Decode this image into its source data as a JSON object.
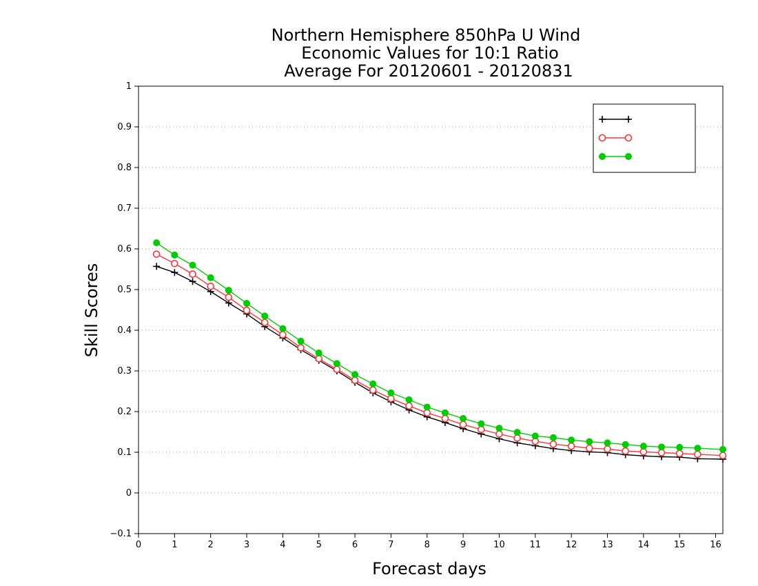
{
  "chart_data": {
    "type": "line",
    "title": [
      "Northern Hemisphere 850hPa U Wind",
      "Economic Values for 10:1 Ratio",
      "Average For 20120601 - 20120831"
    ],
    "xlabel": "Forecast days",
    "ylabel": "Skill Scores",
    "xlim": [
      0,
      16.2
    ],
    "ylim": [
      -0.1,
      1
    ],
    "xticks": [
      0,
      1,
      2,
      3,
      4,
      5,
      6,
      7,
      8,
      9,
      10,
      11,
      12,
      13,
      14,
      15,
      16
    ],
    "yticks": [
      -0.1,
      0,
      0.1,
      0.2,
      0.3,
      0.4,
      0.5,
      0.6,
      0.7,
      0.8,
      0.9,
      1
    ],
    "ytick_labels": [
      "−0.1",
      "0",
      "0.1",
      "0.2",
      "0.3",
      "0.4",
      "0.5",
      "0.6",
      "0.7",
      "0.8",
      "0.9",
      "1"
    ],
    "grid": "horizontal dotted",
    "legend_position": "top-right",
    "x": [
      0.5,
      1,
      1.5,
      2,
      2.5,
      3,
      3.5,
      4,
      4.5,
      5,
      5.5,
      6,
      6.5,
      7,
      7.5,
      8,
      8.5,
      9,
      9.5,
      10,
      10.5,
      11,
      11.5,
      12,
      12.5,
      13,
      13.5,
      14,
      14.5,
      15,
      15.5,
      16.2
    ],
    "series": [
      {
        "name": "",
        "color": "#000000",
        "marker": "plus",
        "values": [
          0.557,
          0.542,
          0.52,
          0.495,
          0.467,
          0.44,
          0.409,
          0.381,
          0.352,
          0.326,
          0.3,
          0.272,
          0.246,
          0.224,
          0.204,
          0.187,
          0.173,
          0.158,
          0.145,
          0.133,
          0.123,
          0.116,
          0.109,
          0.104,
          0.101,
          0.099,
          0.094,
          0.091,
          0.089,
          0.088,
          0.084,
          0.083
        ]
      },
      {
        "name": "",
        "color": "#ff3333",
        "marker": "open-circle",
        "values": [
          0.587,
          0.564,
          0.538,
          0.508,
          0.481,
          0.449,
          0.419,
          0.389,
          0.357,
          0.33,
          0.304,
          0.277,
          0.253,
          0.232,
          0.214,
          0.197,
          0.183,
          0.168,
          0.156,
          0.145,
          0.135,
          0.127,
          0.12,
          0.115,
          0.11,
          0.108,
          0.103,
          0.101,
          0.099,
          0.097,
          0.095,
          0.092
        ]
      },
      {
        "name": "",
        "color": "#00cc00",
        "marker": "filled-circle",
        "values": [
          0.615,
          0.585,
          0.56,
          0.529,
          0.498,
          0.466,
          0.435,
          0.404,
          0.373,
          0.344,
          0.318,
          0.291,
          0.268,
          0.246,
          0.229,
          0.211,
          0.197,
          0.183,
          0.17,
          0.159,
          0.149,
          0.14,
          0.136,
          0.13,
          0.126,
          0.123,
          0.119,
          0.115,
          0.113,
          0.112,
          0.11,
          0.107
        ]
      }
    ]
  }
}
